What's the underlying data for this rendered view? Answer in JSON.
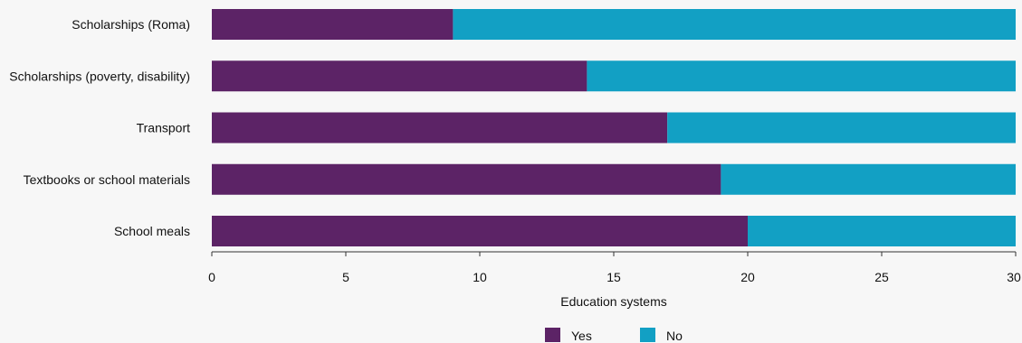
{
  "chart_data": {
    "type": "bar",
    "orientation": "horizontal",
    "stacked": true,
    "categories": [
      "Scholarships (Roma)",
      "Scholarships (poverty, disability)",
      "Transport",
      "Textbooks or school materials",
      "School meals"
    ],
    "series": [
      {
        "name": "Yes",
        "color": "#5c2366",
        "values": [
          9,
          14,
          17,
          19,
          20
        ]
      },
      {
        "name": "No",
        "color": "#12a0c4",
        "values": [
          21,
          16,
          13,
          11,
          10
        ]
      }
    ],
    "xlabel": "Education systems",
    "xlim": [
      0,
      30
    ],
    "xticks": [
      "0",
      "5",
      "10",
      "15",
      "20",
      "25",
      "30"
    ],
    "xtick_values": [
      0,
      5,
      10,
      15,
      20,
      25,
      30
    ],
    "grid": false,
    "legend_position": "bottom-center"
  }
}
